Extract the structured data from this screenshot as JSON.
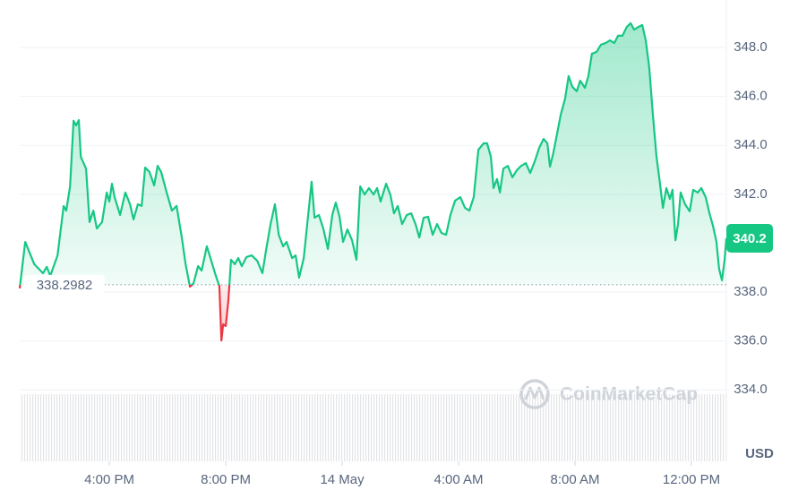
{
  "chart_data": {
    "type": "line",
    "x": [
      12.92,
      13.11,
      13.42,
      13.72,
      13.85,
      13.97,
      14.22,
      14.43,
      14.52,
      14.65,
      14.77,
      14.86,
      14.95,
      15.02,
      15.2,
      15.32,
      15.45,
      15.57,
      15.75,
      15.91,
      16.0,
      16.09,
      16.18,
      16.37,
      16.55,
      16.71,
      16.83,
      16.98,
      17.11,
      17.23,
      17.38,
      17.54,
      17.66,
      17.78,
      17.97,
      18.15,
      18.31,
      18.49,
      18.62,
      18.77,
      18.89,
      19.05,
      19.17,
      19.35,
      19.51,
      19.66,
      19.78,
      19.85,
      19.91,
      20.0,
      20.09,
      20.18,
      20.31,
      20.43,
      20.55,
      20.71,
      20.89,
      21.08,
      21.26,
      21.38,
      21.54,
      21.69,
      21.82,
      21.97,
      22.09,
      22.28,
      22.4,
      22.52,
      22.68,
      22.8,
      22.95,
      23.05,
      23.2,
      23.35,
      23.51,
      23.66,
      23.78,
      23.91,
      24.03,
      24.18,
      24.34,
      24.49,
      24.62,
      24.77,
      24.92,
      25.08,
      25.2,
      25.32,
      25.51,
      25.66,
      25.78,
      25.91,
      26.06,
      26.22,
      26.37,
      26.52,
      26.65,
      26.8,
      26.95,
      27.11,
      27.26,
      27.41,
      27.57,
      27.72,
      27.88,
      28.06,
      28.22,
      28.37,
      28.52,
      28.68,
      28.86,
      28.98,
      29.11,
      29.2,
      29.32,
      29.42,
      29.54,
      29.69,
      29.85,
      30.0,
      30.15,
      30.31,
      30.46,
      30.62,
      30.77,
      30.92,
      31.05,
      31.14,
      31.26,
      31.38,
      31.51,
      31.66,
      31.78,
      31.91,
      32.06,
      32.18,
      32.34,
      32.46,
      32.58,
      32.74,
      32.89,
      33.05,
      33.2,
      33.35,
      33.48,
      33.63,
      33.78,
      33.91,
      34.03,
      34.18,
      34.31,
      34.43,
      34.55,
      34.68,
      34.8,
      34.92,
      35.02,
      35.14,
      35.26,
      35.35,
      35.45,
      35.54,
      35.63,
      35.78,
      35.94,
      36.06,
      36.22,
      36.34,
      36.49,
      36.62,
      36.74,
      36.86,
      36.95,
      37.05,
      37.14,
      37.2
    ],
    "values": [
      338.15,
      340.05,
      339.14,
      338.77,
      339.03,
      338.66,
      339.5,
      341.52,
      341.33,
      342.32,
      345.0,
      344.81,
      345.03,
      343.53,
      343.05,
      340.86,
      341.33,
      340.6,
      340.86,
      342.07,
      341.7,
      342.43,
      341.88,
      341.15,
      342.07,
      341.59,
      340.97,
      341.59,
      341.52,
      343.09,
      342.91,
      342.36,
      343.16,
      342.91,
      342.07,
      341.33,
      341.52,
      340.23,
      339.14,
      338.22,
      338.35,
      339.06,
      338.88,
      339.87,
      339.25,
      338.66,
      338.25,
      336.02,
      336.68,
      336.61,
      337.67,
      339.32,
      339.14,
      339.39,
      339.06,
      339.43,
      339.5,
      339.28,
      338.77,
      339.68,
      340.78,
      341.59,
      340.34,
      339.87,
      340.05,
      339.39,
      339.5,
      338.59,
      339.39,
      340.78,
      342.51,
      341.04,
      341.15,
      340.6,
      339.76,
      341.15,
      341.66,
      341.08,
      340.05,
      340.56,
      340.12,
      339.32,
      342.32,
      341.99,
      342.25,
      341.99,
      342.25,
      341.7,
      342.43,
      341.96,
      341.22,
      341.52,
      340.78,
      341.15,
      341.22,
      340.78,
      340.23,
      341.04,
      341.08,
      340.34,
      340.78,
      340.42,
      340.34,
      341.15,
      341.74,
      341.88,
      341.44,
      341.33,
      341.88,
      343.82,
      344.08,
      344.08,
      343.53,
      342.25,
      342.62,
      342.07,
      343.05,
      343.16,
      342.69,
      342.98,
      343.16,
      343.27,
      342.87,
      343.35,
      343.9,
      344.26,
      344.08,
      343.13,
      343.71,
      344.45,
      345.25,
      345.91,
      346.83,
      346.39,
      346.21,
      346.64,
      346.35,
      346.83,
      347.74,
      347.82,
      348.11,
      348.18,
      348.29,
      348.18,
      348.48,
      348.48,
      348.84,
      348.99,
      348.73,
      348.84,
      348.92,
      348.29,
      347.19,
      345.18,
      343.53,
      342.43,
      341.44,
      342.25,
      341.81,
      342.18,
      340.12,
      340.78,
      342.07,
      341.59,
      341.3,
      342.18,
      342.07,
      342.25,
      341.88,
      341.22,
      340.71,
      340.05,
      338.95,
      338.48,
      339.32,
      340.2
    ],
    "xlim": [
      12.92,
      37.2
    ],
    "xticks": [
      {
        "value": 16,
        "label": "4:00 PM"
      },
      {
        "value": 20,
        "label": "8:00 PM"
      },
      {
        "value": 24,
        "label": "14 May"
      },
      {
        "value": 28,
        "label": "4:00 AM"
      },
      {
        "value": 32,
        "label": "8:00 AM"
      },
      {
        "value": 36,
        "label": "12:00 PM"
      }
    ],
    "ylim": [
      331.08,
      349.94
    ],
    "yticks": [
      {
        "value": 334,
        "label": "334.0"
      },
      {
        "value": 336,
        "label": "336.0"
      },
      {
        "value": 338,
        "label": "338.0"
      },
      {
        "value": 342,
        "label": "342.0"
      },
      {
        "value": 344,
        "label": "344.0"
      },
      {
        "value": 346,
        "label": "346.0"
      },
      {
        "value": 348,
        "label": "348.0"
      }
    ],
    "grid": true,
    "baseline": 338.2982,
    "current_price": 340.2,
    "colors": {
      "up": "#16c784",
      "down": "#ea3943"
    },
    "unit": "USD",
    "watermark": "CoinMarketCap"
  }
}
